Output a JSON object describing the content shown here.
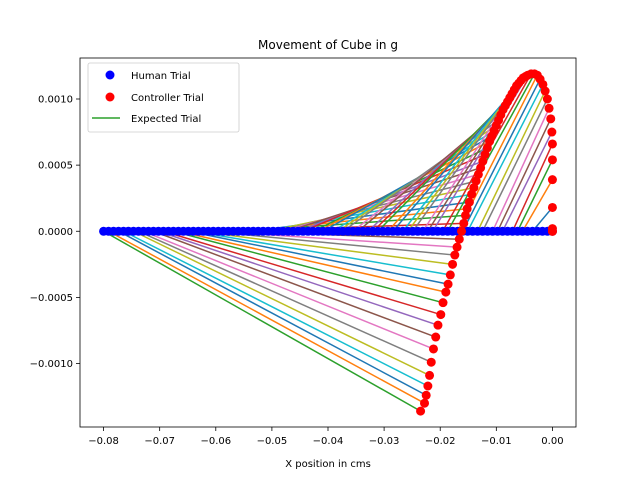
{
  "chart_data": {
    "type": "scatter",
    "title": "Movement of Cube in g",
    "xlabel": "X position in cms",
    "ylabel": "",
    "xlim": [
      -0.0842,
      0.0042
    ],
    "ylim": [
      -0.00148,
      0.00131
    ],
    "xticks": [
      -0.08,
      -0.07,
      -0.06,
      -0.05,
      -0.04,
      -0.03,
      -0.02,
      -0.01,
      0.0
    ],
    "xtick_labels": [
      "−0.08",
      "−0.07",
      "−0.06",
      "−0.05",
      "−0.04",
      "−0.03",
      "−0.02",
      "−0.01",
      "0.00"
    ],
    "yticks": [
      -0.001,
      -0.0005,
      0.0,
      0.0005,
      0.001
    ],
    "ytick_labels": [
      "−0.0010",
      "−0.0005",
      "0.0000",
      "0.0005",
      "0.0010"
    ],
    "grid": false,
    "legend": {
      "position": "top-left",
      "entries": [
        {
          "label": "Human Trial",
          "marker": "dot",
          "color": "#0000ff"
        },
        {
          "label": "Controller Trial",
          "marker": "dot",
          "color": "#ff0000"
        },
        {
          "label": "Expected Trial",
          "marker": "line",
          "color": "#2ca02c"
        }
      ]
    },
    "human_trial": {
      "color": "#0000ff",
      "y": 0.0,
      "x_start": -0.08,
      "x_end": 0.0,
      "count": 91
    },
    "controller_trial": {
      "color": "#ff0000",
      "x": [
        -0.0235,
        -0.0228,
        -0.0225,
        -0.0222,
        -0.0219,
        -0.0216,
        -0.0212,
        -0.0208,
        -0.0204,
        -0.0199,
        -0.0195,
        -0.019,
        -0.0186,
        -0.0182,
        -0.0178,
        -0.0174,
        -0.017,
        -0.0166,
        -0.0162,
        -0.0158,
        -0.0155,
        -0.0152,
        -0.0148,
        -0.0144,
        -0.014,
        -0.0136,
        -0.0132,
        -0.0128,
        -0.0124,
        -0.012,
        -0.0116,
        -0.0112,
        -0.0108,
        -0.0104,
        -0.01,
        -0.0096,
        -0.0092,
        -0.0088,
        -0.0084,
        -0.008,
        -0.0076,
        -0.0072,
        -0.0068,
        -0.0064,
        -0.006,
        -0.0056,
        -0.0052,
        -0.0048,
        -0.0044,
        -0.0038,
        -0.0032,
        -0.0027,
        -0.0022,
        -0.0017,
        -0.0013,
        -0.0009,
        -0.0006,
        -0.0003,
        -0.0001,
        0.0,
        0.0,
        0.0,
        0.0,
        0.0,
        0.0,
        0.0
      ],
      "y": [
        -0.00136,
        -0.0013,
        -0.00124,
        -0.00117,
        -0.00109,
        -0.00099,
        -0.00089,
        -0.0008,
        -0.00071,
        -0.00063,
        -0.00054,
        -0.00046,
        -0.0004,
        -0.00033,
        -0.00025,
        -0.00018,
        -0.00012,
        -6e-05,
        0.0,
        6e-05,
        0.00012,
        0.00017,
        0.00022,
        0.00028,
        0.00033,
        0.00038,
        0.00043,
        0.00048,
        0.00053,
        0.00058,
        0.00063,
        0.00068,
        0.00072,
        0.00076,
        0.0008,
        0.00084,
        0.00088,
        0.00092,
        0.00095,
        0.00098,
        0.00101,
        0.00104,
        0.00107,
        0.0011,
        0.00112,
        0.00114,
        0.00116,
        0.00117,
        0.00118,
        0.00119,
        0.00119,
        0.00118,
        0.00115,
        0.00111,
        0.00106,
        0.001,
        0.00093,
        0.00085,
        0.00075,
        0.00066,
        0.00054,
        0.00039,
        0.00018,
        2e-05,
        0.0,
        0.0
      ]
    },
    "expected_trial": {
      "colors": [
        "#1f77b4",
        "#ff7f0e",
        "#2ca02c",
        "#d62728",
        "#9467bd",
        "#8c564b",
        "#e377c2",
        "#7f7f7f",
        "#bcbd22",
        "#17becf"
      ]
    }
  }
}
